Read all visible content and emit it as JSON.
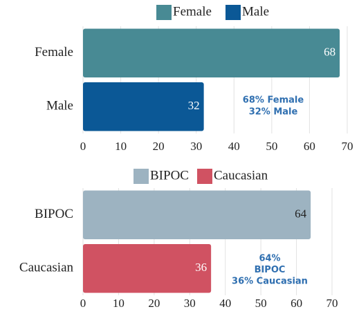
{
  "chart_data": [
    {
      "type": "bar",
      "orientation": "horizontal",
      "categories": [
        "Female",
        "Male"
      ],
      "values": [
        68,
        32
      ],
      "colors": [
        "#488a94",
        "#0b5896"
      ],
      "value_label_colors": [
        "#ffffff",
        "#ffffff"
      ],
      "xlim": [
        0,
        70
      ],
      "xticks": [
        0,
        10,
        20,
        30,
        40,
        50,
        60,
        70
      ],
      "grid": true,
      "legend": "top",
      "annotation": [
        "68% Female",
        "32% Male"
      ]
    },
    {
      "type": "bar",
      "orientation": "horizontal",
      "categories": [
        "BIPOC",
        "Caucasian"
      ],
      "values": [
        64,
        36
      ],
      "colors": [
        "#9db3c1",
        "#d05262"
      ],
      "value_label_colors": [
        "#222222",
        "#ffffff"
      ],
      "xlim": [
        0,
        70
      ],
      "xticks": [
        0,
        10,
        20,
        30,
        40,
        50,
        60,
        70
      ],
      "grid": true,
      "legend": "top",
      "annotation": [
        "64%",
        "BIPOC",
        "36% Caucasian"
      ]
    }
  ]
}
